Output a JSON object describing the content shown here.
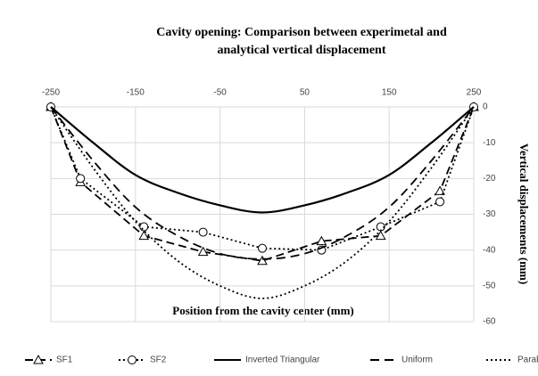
{
  "chart_data": {
    "type": "line",
    "title": "Cavity opening: Comparison between experimetal and",
    "subtitle": "analytical vertical displacement",
    "x_label": "Position from the cavity center (mm)",
    "y_label": "Vertical displacements (mm)",
    "xlim": [
      -250,
      250
    ],
    "xticks": [
      -250,
      -150,
      -50,
      50,
      150,
      250
    ],
    "ylim": [
      -60,
      0
    ],
    "yticks": [
      0,
      -10,
      -20,
      -30,
      -40,
      -50,
      -60
    ],
    "grid": true,
    "legend": "bottom",
    "series": [
      {
        "name": "SF1",
        "color": "#000000",
        "dash": "9 5",
        "marker": "triangle",
        "smooth": false,
        "x": [
          -250,
          -215,
          -140,
          -70,
          0,
          70,
          140,
          210,
          250
        ],
        "values": [
          0,
          -21,
          -36,
          -40.5,
          -43,
          -37.5,
          -36,
          -23.5,
          0
        ]
      },
      {
        "name": "SF2",
        "color": "#000000",
        "dash": "2 3",
        "marker": "circle",
        "smooth": false,
        "x": [
          -250,
          -215,
          -140,
          -70,
          0,
          70,
          140,
          210,
          250
        ],
        "values": [
          0,
          -20,
          -33.5,
          -35,
          -39.5,
          -40,
          -33.5,
          -26.5,
          0
        ]
      },
      {
        "name": "Inverted Triangular",
        "color": "#000000",
        "dash": "none",
        "marker": "none",
        "smooth": true,
        "x": [
          -250,
          -200,
          -150,
          -100,
          -50,
          0,
          50,
          100,
          150,
          200,
          250
        ],
        "values": [
          0,
          -10,
          -19,
          -24,
          -27.5,
          -29.5,
          -27.5,
          -24,
          -19,
          -10,
          0
        ]
      },
      {
        "name": "Uniform",
        "color": "#000000",
        "dash": "10 6",
        "marker": "none",
        "smooth": true,
        "x": [
          -250,
          -200,
          -150,
          -100,
          -50,
          0,
          50,
          100,
          150,
          200,
          250
        ],
        "values": [
          0,
          -15,
          -28,
          -36,
          -41,
          -42.5,
          -41,
          -36,
          -28,
          -15,
          0
        ]
      },
      {
        "name": "Parabolic",
        "color": "#000000",
        "dash": "2 3",
        "marker": "none",
        "smooth": true,
        "x": [
          -250,
          -200,
          -150,
          -100,
          -50,
          0,
          50,
          100,
          150,
          200,
          250
        ],
        "values": [
          0,
          -17,
          -32,
          -43,
          -50,
          -53.5,
          -50,
          -43,
          -32,
          -17,
          0
        ]
      }
    ]
  }
}
